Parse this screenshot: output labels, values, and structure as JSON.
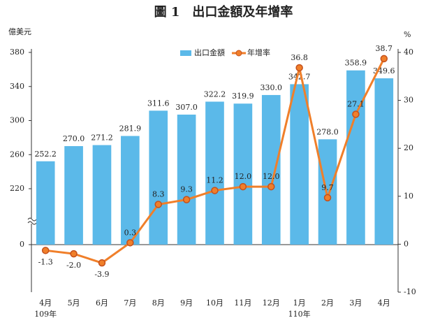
{
  "chart_data": {
    "type": "bar_line",
    "title": "圖 1　出口金額及年增率",
    "y_unit": "億美元",
    "y2_unit": "%",
    "categories": [
      "4月",
      "5月",
      "6月",
      "7月",
      "8月",
      "9月",
      "10月",
      "11月",
      "12月",
      "1月",
      "2月",
      "3月",
      "4月"
    ],
    "year_labels": [
      {
        "index": 0,
        "label": "109年"
      },
      {
        "index": 9,
        "label": "110年"
      }
    ],
    "series": [
      {
        "name": "出口金額",
        "type": "bar",
        "color": "#5bb9e9",
        "values": [
          252.2,
          270.0,
          271.2,
          281.9,
          311.6,
          307.0,
          322.2,
          319.9,
          330.0,
          342.7,
          278.0,
          358.9,
          349.6
        ],
        "value_labels": [
          "252.2",
          "270.0",
          "271.2",
          "281.9",
          "311.6",
          "307.0",
          "322.2",
          "319.9",
          "330.0",
          "342.7",
          "278.0",
          "358.9",
          "349.6"
        ]
      },
      {
        "name": "年增率",
        "type": "line",
        "axis": "y2",
        "color": "#f07f2a",
        "values": [
          -1.3,
          -2.0,
          -3.9,
          0.3,
          8.3,
          9.3,
          11.2,
          12.0,
          12.0,
          36.8,
          9.7,
          27.1,
          38.7
        ],
        "value_labels": [
          "-1.3",
          "-2.0",
          "-3.9",
          "0.3",
          "8.3",
          "9.3",
          "11.2",
          "12.0",
          "12.0",
          "36.8",
          "9.7",
          "27.1",
          "38.7"
        ]
      }
    ],
    "ylim": [
      0,
      380
    ],
    "yticks": [
      0,
      220,
      260,
      300,
      340,
      380
    ],
    "y_break": [
      0,
      220
    ],
    "y2lim": [
      -10,
      40
    ],
    "y2ticks": [
      -10,
      0,
      10,
      20,
      30,
      40
    ]
  }
}
